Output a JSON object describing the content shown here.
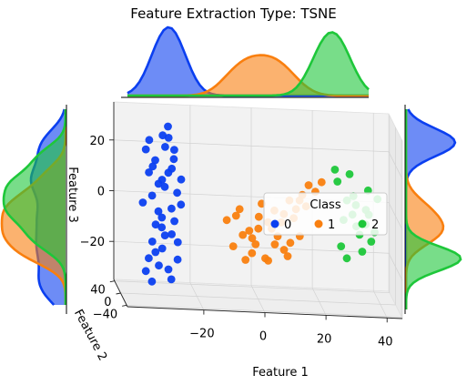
{
  "chart_data": {
    "type": "scatter",
    "projection": "3d",
    "title": "Feature Extraction Type: TSNE",
    "xlabel": "Feature 1",
    "ylabel": "Feature 2",
    "zlabel": "Feature 3",
    "x_ticks": [
      "−20",
      "0",
      "20",
      "40"
    ],
    "y_ticks": [
      "−40",
      "0",
      "40"
    ],
    "z_ticks": [
      "−20",
      "0",
      "20"
    ],
    "xlim": [
      -45,
      45
    ],
    "ylim": [
      -45,
      45
    ],
    "zlim": [
      -35,
      35
    ],
    "grid": true,
    "legend": {
      "title": "Class",
      "placement": "center-right",
      "entries": [
        "0",
        "1",
        "2"
      ]
    },
    "colors": {
      "0": "#0b3ff0",
      "1": "#f97f0f",
      "2": "#1ec73a"
    },
    "marginals": [
      "top: Feature 1 density per class",
      "left: Feature 3 density per class",
      "right: Feature 2 density per class"
    ],
    "series": [
      {
        "name": "0",
        "color": "#0b3ff0",
        "points": [
          [
            -35,
            35,
            18
          ],
          [
            -33,
            30,
            12
          ],
          [
            -30,
            25,
            25
          ],
          [
            -31,
            32,
            5
          ],
          [
            -36,
            35,
            -3
          ],
          [
            -28,
            28,
            10
          ],
          [
            -30,
            30,
            -8
          ],
          [
            -27,
            26,
            -14
          ],
          [
            -33,
            33,
            -18
          ],
          [
            -25,
            30,
            2
          ],
          [
            -26,
            32,
            15
          ],
          [
            -34,
            36,
            -25
          ],
          [
            -29,
            29,
            20
          ],
          [
            -32,
            31,
            -11
          ],
          [
            -24,
            24,
            8
          ],
          [
            -35,
            35,
            -30
          ],
          [
            -27,
            27,
            -4
          ],
          [
            -30,
            28,
            -20
          ],
          [
            -28,
            30,
            28
          ],
          [
            -33,
            34,
            0
          ],
          [
            -25,
            26,
            -17
          ],
          [
            -31,
            30,
            -27
          ],
          [
            -29,
            31,
            4
          ],
          [
            -26,
            28,
            -9
          ],
          [
            -34,
            33,
            22
          ],
          [
            -27,
            25,
            12
          ],
          [
            -32,
            32,
            -22
          ],
          [
            -28,
            27,
            -28
          ],
          [
            -30,
            29,
            7
          ],
          [
            -25,
            27,
            -24
          ],
          [
            -33,
            35,
            -34
          ],
          [
            -29,
            30,
            -15
          ],
          [
            -26,
            29,
            19
          ],
          [
            -31,
            33,
            -6
          ],
          [
            -27,
            28,
            -32
          ],
          [
            -24,
            25,
            -2
          ],
          [
            -28,
            26,
            24
          ],
          [
            -32,
            34,
            14
          ],
          [
            -30,
            31,
            -12
          ],
          [
            -34,
            35,
            9
          ]
        ]
      },
      {
        "name": "1",
        "color": "#f97f0f",
        "points": [
          [
            -10,
            5,
            -5
          ],
          [
            -5,
            0,
            -10
          ],
          [
            0,
            -5,
            -2
          ],
          [
            5,
            -10,
            -12
          ],
          [
            10,
            -5,
            5
          ],
          [
            -8,
            3,
            -15
          ],
          [
            -3,
            -2,
            -8
          ],
          [
            2,
            -7,
            -18
          ],
          [
            7,
            -12,
            -3
          ],
          [
            12,
            -8,
            2
          ],
          [
            -6,
            1,
            0
          ],
          [
            -1,
            -4,
            -13
          ],
          [
            4,
            -9,
            -6
          ],
          [
            9,
            -14,
            -16
          ],
          [
            14,
            -10,
            8
          ],
          [
            -4,
            2,
            -20
          ],
          [
            1,
            -3,
            3
          ],
          [
            6,
            -8,
            -9
          ],
          [
            11,
            -13,
            -1
          ],
          [
            16,
            -11,
            12
          ],
          [
            -2,
            0,
            -17
          ],
          [
            3,
            -5,
            -4
          ],
          [
            8,
            -10,
            -14
          ],
          [
            13,
            -12,
            6
          ],
          [
            18,
            -15,
            10
          ],
          [
            0,
            -2,
            -7
          ],
          [
            5,
            -7,
            1
          ],
          [
            10,
            -11,
            -11
          ],
          [
            15,
            -14,
            4
          ],
          [
            20,
            -16,
            14
          ],
          [
            -7,
            4,
            -3
          ],
          [
            -2,
            -1,
            -11
          ],
          [
            3,
            -6,
            -19
          ],
          [
            8,
            -9,
            0
          ],
          [
            13,
            -13,
            -8
          ]
        ]
      },
      {
        "name": "2",
        "color": "#1ec73a",
        "points": [
          [
            25,
            -20,
            15
          ],
          [
            28,
            -22,
            8
          ],
          [
            30,
            -18,
            2
          ],
          [
            32,
            -25,
            -5
          ],
          [
            35,
            -20,
            12
          ],
          [
            26,
            -24,
            -10
          ],
          [
            29,
            -19,
            18
          ],
          [
            31,
            -23,
            -2
          ],
          [
            34,
            -26,
            5
          ],
          [
            36,
            -21,
            -8
          ],
          [
            27,
            -20,
            0
          ],
          [
            30,
            -24,
            10
          ],
          [
            33,
            -22,
            -12
          ],
          [
            35,
            -25,
            3
          ],
          [
            37,
            -23,
            -4
          ],
          [
            28,
            -21,
            -15
          ],
          [
            31,
            -20,
            6
          ],
          [
            34,
            -24,
            -1
          ],
          [
            24,
            -23,
            20
          ],
          [
            38,
            -22,
            9
          ]
        ]
      }
    ]
  }
}
